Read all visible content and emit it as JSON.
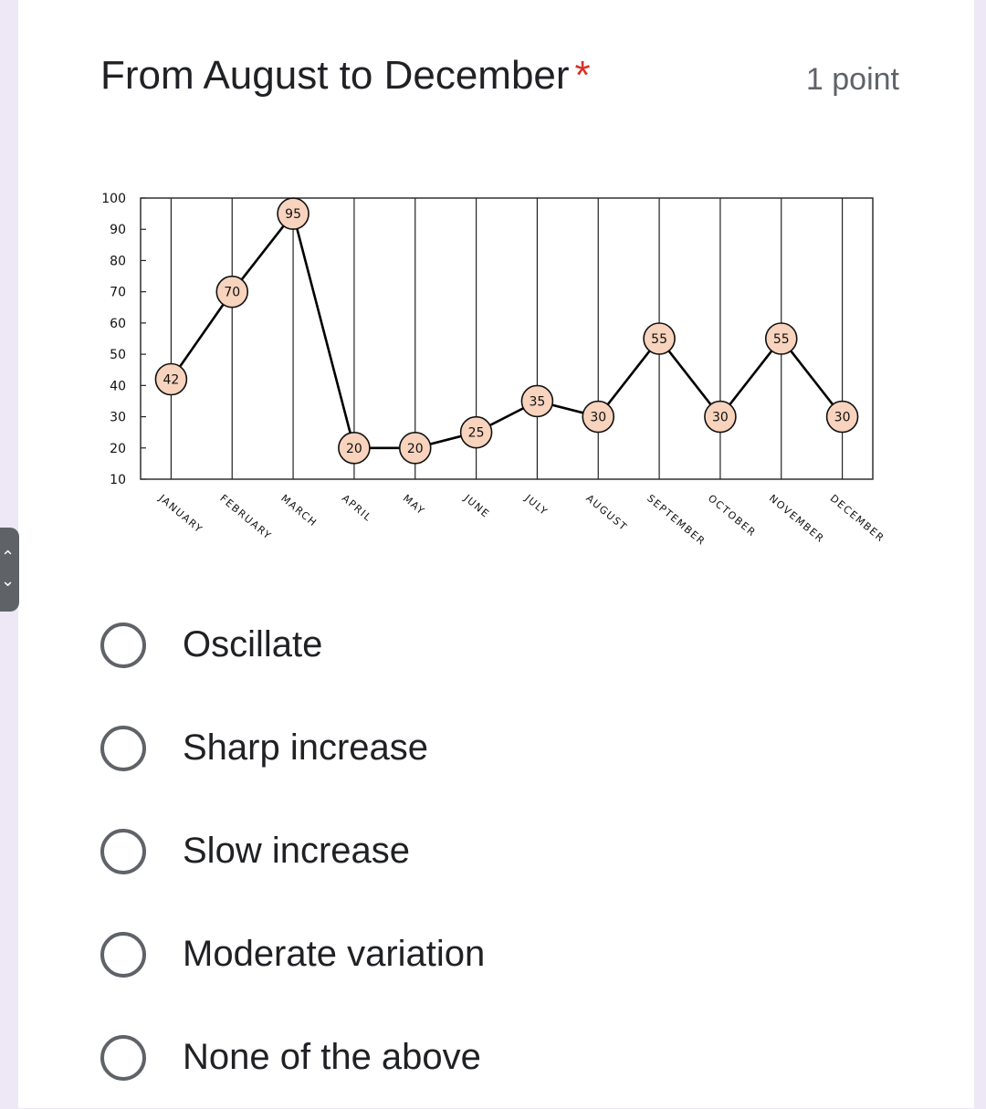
{
  "question": {
    "title": "From August to December",
    "required_mark": "*",
    "points": "1 point"
  },
  "options": [
    {
      "label": "Oscillate"
    },
    {
      "label": "Sharp increase"
    },
    {
      "label": "Slow increase"
    },
    {
      "label": "Moderate variation"
    },
    {
      "label": "None of the above"
    }
  ],
  "side_tab": {
    "up_icon": "chevron-up-icon",
    "down_icon": "chevron-down-icon",
    "up_glyph": "⌃",
    "down_glyph": "⌄"
  },
  "chart_data": {
    "type": "line",
    "categories": [
      "JANUARY",
      "FEBRUARY",
      "MARCH",
      "APRIL",
      "MAY",
      "JUNE",
      "JULY",
      "AUGUST",
      "SEPTEMBER",
      "OCTOBER",
      "NOVEMBER",
      "DECEMBER"
    ],
    "series": [
      {
        "values": [
          42,
          70,
          95,
          20,
          20,
          25,
          35,
          30,
          55,
          30,
          55,
          30
        ]
      }
    ],
    "title": "",
    "xlabel": "",
    "ylabel": "",
    "ylim": [
      10,
      100
    ],
    "yticks": [
      10,
      20,
      30,
      40,
      50,
      60,
      70,
      80,
      90,
      100
    ],
    "grid": "vertical",
    "legend": "none",
    "marker_fill": "#f8d3bd",
    "line_color": "#000000"
  }
}
